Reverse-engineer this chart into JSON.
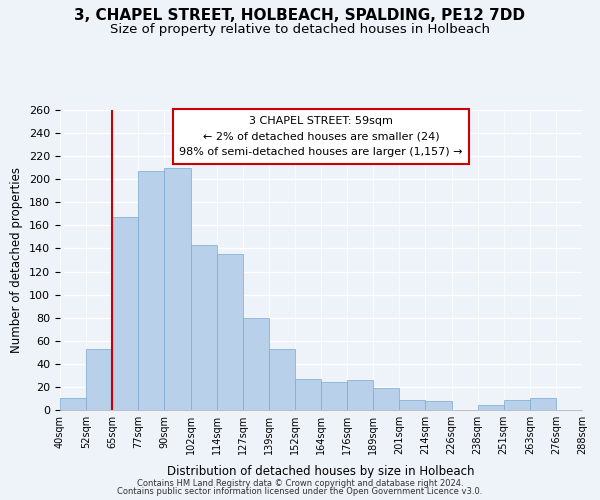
{
  "title": "3, CHAPEL STREET, HOLBEACH, SPALDING, PE12 7DD",
  "subtitle": "Size of property relative to detached houses in Holbeach",
  "xlabel": "Distribution of detached houses by size in Holbeach",
  "ylabel": "Number of detached properties",
  "footer1": "Contains HM Land Registry data © Crown copyright and database right 2024.",
  "footer2": "Contains public sector information licensed under the Open Government Licence v3.0.",
  "bin_labels": [
    "40sqm",
    "52sqm",
    "65sqm",
    "77sqm",
    "90sqm",
    "102sqm",
    "114sqm",
    "127sqm",
    "139sqm",
    "152sqm",
    "164sqm",
    "176sqm",
    "189sqm",
    "201sqm",
    "214sqm",
    "226sqm",
    "238sqm",
    "251sqm",
    "263sqm",
    "276sqm",
    "288sqm"
  ],
  "bar_values": [
    10,
    53,
    167,
    207,
    210,
    143,
    135,
    80,
    53,
    27,
    24,
    26,
    19,
    9,
    8,
    0,
    4,
    9,
    10,
    0
  ],
  "bar_color": "#b8d0ea",
  "bar_edge_color": "#7aaad0",
  "vline_color": "#cc0000",
  "annotation_title": "3 CHAPEL STREET: 59sqm",
  "annotation_line1": "← 2% of detached houses are smaller (24)",
  "annotation_line2": "98% of semi-detached houses are larger (1,157) →",
  "annotation_box_color": "#cc0000",
  "ylim": [
    0,
    260
  ],
  "yticks": [
    0,
    20,
    40,
    60,
    80,
    100,
    120,
    140,
    160,
    180,
    200,
    220,
    240,
    260
  ],
  "background_color": "#eef2f9",
  "title_fontsize": 11,
  "subtitle_fontsize": 9.5
}
